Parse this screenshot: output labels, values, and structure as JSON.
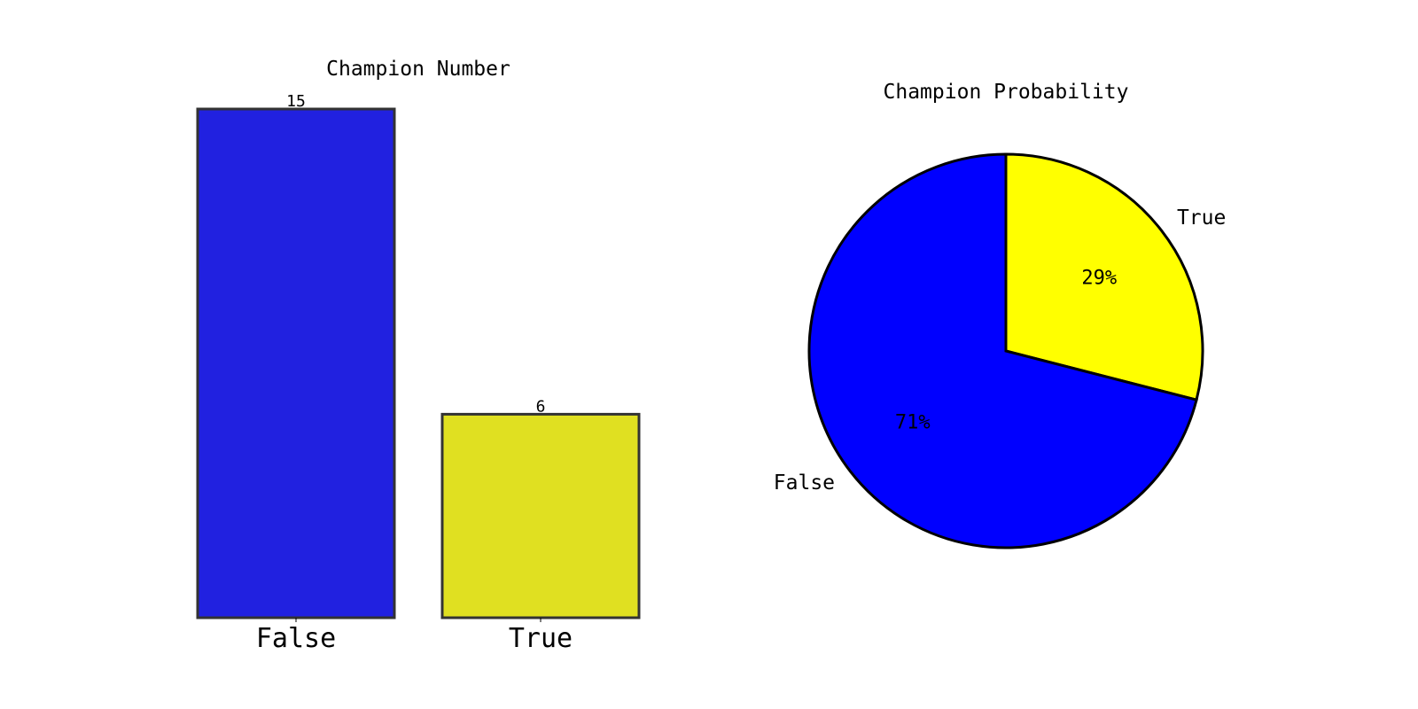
{
  "chart_data": [
    {
      "type": "bar",
      "title": "Champion Number",
      "categories": [
        "False",
        "True"
      ],
      "values": [
        15,
        6
      ],
      "value_labels": [
        "15",
        "6"
      ],
      "colors": [
        "#2121e0",
        "#e0e021"
      ],
      "edge_color": "#333333",
      "ylim": [
        0,
        15
      ],
      "xlabel": "",
      "ylabel": "",
      "grid": false
    },
    {
      "type": "pie",
      "title": "Champion Probability",
      "labels": [
        "True",
        "False"
      ],
      "values": [
        29,
        71
      ],
      "percent_labels": [
        "29%",
        "71%"
      ],
      "colors": [
        "#ffff00",
        "#0000ff"
      ],
      "edge_color": "#000000"
    }
  ]
}
